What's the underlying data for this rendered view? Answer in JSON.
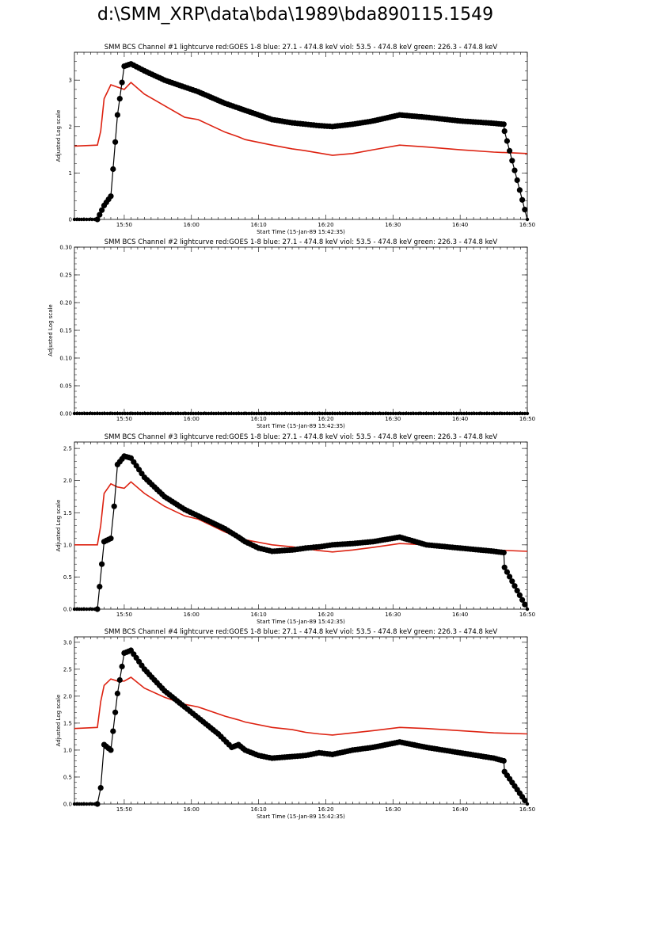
{
  "page_title": "d:\\SMM_XRP\\data\\bda\\1989\\bda890115.1549",
  "colors": {
    "goes": "#dd2211",
    "bcs": "#000000"
  },
  "chart_data": [
    {
      "type": "scatter",
      "title": "SMM BCS Channel #1 lightcurve  red:GOES 1-8  blue: 27.1 - 474.8 keV  viol: 53.5 - 474.8 keV  green: 226.3 - 474.8 keV",
      "xlabel": "Start Time (15-Jan-89 15:42:35)",
      "ylabel": "Adjusted Log scale",
      "xlim": [
        "15:42:35",
        "16:50"
      ],
      "ylim": [
        0,
        3.6
      ],
      "xticks": [
        "15:50",
        "16:00",
        "16:10",
        "16:20",
        "16:30",
        "16:40",
        "16:50"
      ],
      "yticks": [
        "0",
        "1",
        "2",
        "3"
      ],
      "series": [
        {
          "name": "red:GOES 1-8",
          "color": "#dd2211",
          "kind": "line",
          "x": [
            "15:42:35",
            "15:46",
            "15:46.5",
            "15:47",
            "15:48",
            "15:49",
            "15:50",
            "15:51",
            "15:53",
            "15:56",
            "15:59",
            "16:01",
            "16:05",
            "16:07",
            "16:08",
            "16:12",
            "16:15",
            "16:17",
            "16:19",
            "16:21",
            "16:24",
            "16:27",
            "16:31",
            "16:35",
            "16:40",
            "16:45",
            "16:50"
          ],
          "y": [
            1.58,
            1.6,
            1.9,
            2.6,
            2.9,
            2.85,
            2.8,
            2.95,
            2.7,
            2.45,
            2.2,
            2.15,
            1.88,
            1.78,
            1.72,
            1.6,
            1.52,
            1.48,
            1.43,
            1.38,
            1.42,
            1.5,
            1.6,
            1.56,
            1.5,
            1.45,
            1.42
          ]
        },
        {
          "name": "BCS",
          "color": "#000000",
          "kind": "points",
          "x": [
            "15:42:35",
            "15:44",
            "15:46",
            "15:47",
            "15:48",
            "15:49",
            "15:50",
            "15:51",
            "15:53",
            "15:56",
            "15:59",
            "16:01",
            "16:05",
            "16:07",
            "16:08",
            "16:12",
            "16:15",
            "16:17",
            "16:19",
            "16:21",
            "16:24",
            "16:27",
            "16:31",
            "16:35",
            "16:40",
            "16:45",
            "16:46.5",
            "16:46.6",
            "16:50"
          ],
          "y": [
            0,
            0,
            0,
            0.3,
            0.5,
            2.25,
            3.3,
            3.35,
            3.2,
            3.0,
            2.85,
            2.75,
            2.5,
            2.4,
            2.35,
            2.15,
            2.08,
            2.05,
            2.02,
            2.0,
            2.05,
            2.12,
            2.25,
            2.2,
            2.12,
            2.07,
            2.05,
            1.9,
            0
          ]
        }
      ]
    },
    {
      "type": "scatter",
      "title": "SMM BCS Channel #2 lightcurve  red:GOES 1-8  blue: 27.1 - 474.8 keV  viol: 53.5 - 474.8 keV  green: 226.3 - 474.8 keV",
      "xlabel": "Start Time (15-Jan-89 15:42:35)",
      "ylabel": "Adjusted Log scale",
      "xlim": [
        "15:42:35",
        "16:50"
      ],
      "ylim": [
        0,
        0.3
      ],
      "xticks": [
        "15:50",
        "16:00",
        "16:10",
        "16:20",
        "16:30",
        "16:40",
        "16:50"
      ],
      "yticks": [
        "0.00",
        "0.05",
        "0.10",
        "0.15",
        "0.20",
        "0.25",
        "0.30"
      ],
      "series": [
        {
          "name": "BCS",
          "color": "#000000",
          "kind": "points",
          "x": [
            "15:42:35",
            "16:50"
          ],
          "y": [
            0,
            0
          ]
        }
      ]
    },
    {
      "type": "scatter",
      "title": "SMM BCS Channel #3 lightcurve  red:GOES 1-8  blue: 27.1 - 474.8 keV  viol: 53.5 - 474.8 keV  green: 226.3 - 474.8 keV",
      "xlabel": "Start Time (15-Jan-89 15:42:35)",
      "ylabel": "Adjusted Log scale",
      "xlim": [
        "15:42:35",
        "16:50"
      ],
      "ylim": [
        0,
        2.6
      ],
      "xticks": [
        "15:50",
        "16:00",
        "16:10",
        "16:20",
        "16:30",
        "16:40",
        "16:50"
      ],
      "yticks": [
        "0.0",
        "0.5",
        "1.0",
        "1.5",
        "2.0",
        "2.5"
      ],
      "series": [
        {
          "name": "red:GOES 1-8",
          "color": "#dd2211",
          "kind": "line",
          "x": [
            "15:42:35",
            "15:46",
            "15:46.5",
            "15:47",
            "15:48",
            "15:49",
            "15:50",
            "15:51",
            "15:53",
            "15:56",
            "15:59",
            "16:01",
            "16:05",
            "16:07",
            "16:08",
            "16:12",
            "16:15",
            "16:17",
            "16:19",
            "16:21",
            "16:24",
            "16:27",
            "16:31",
            "16:35",
            "16:40",
            "16:45",
            "16:50"
          ],
          "y": [
            1.0,
            1.0,
            1.3,
            1.8,
            1.95,
            1.9,
            1.88,
            1.98,
            1.8,
            1.6,
            1.45,
            1.4,
            1.2,
            1.12,
            1.08,
            1.0,
            0.97,
            0.94,
            0.91,
            0.89,
            0.92,
            0.96,
            1.02,
            1.0,
            0.96,
            0.92,
            0.9
          ]
        },
        {
          "name": "BCS",
          "color": "#000000",
          "kind": "points",
          "x": [
            "15:42:35",
            "15:44",
            "15:46",
            "15:47",
            "15:48",
            "15:48.5",
            "15:49",
            "15:50",
            "15:51",
            "15:53",
            "15:56",
            "15:59",
            "16:01",
            "16:05",
            "16:07",
            "16:08",
            "16:10",
            "16:12",
            "16:15",
            "16:17",
            "16:19",
            "16:21",
            "16:24",
            "16:27",
            "16:31",
            "16:35",
            "16:40",
            "16:45",
            "16:46.5",
            "16:46.6",
            "16:50"
          ],
          "y": [
            0,
            0,
            0,
            1.05,
            1.1,
            1.6,
            2.25,
            2.38,
            2.35,
            2.05,
            1.75,
            1.55,
            1.45,
            1.25,
            1.12,
            1.05,
            0.95,
            0.9,
            0.92,
            0.95,
            0.97,
            1.0,
            1.02,
            1.05,
            1.12,
            1.0,
            0.95,
            0.9,
            0.88,
            0.65,
            0
          ]
        }
      ]
    },
    {
      "type": "scatter",
      "title": "SMM BCS Channel #4 lightcurve  red:GOES 1-8  blue: 27.1 - 474.8 keV  viol: 53.5 - 474.8 keV  green: 226.3 - 474.8 keV",
      "xlabel": "Start Time (15-Jan-89 15:42:35)",
      "ylabel": "Adjusted Log scale",
      "xlim": [
        "15:42:35",
        "16:50"
      ],
      "ylim": [
        0,
        3.1
      ],
      "xticks": [
        "15:50",
        "16:00",
        "16:10",
        "16:20",
        "16:30",
        "16:40",
        "16:50"
      ],
      "yticks": [
        "0.0",
        "0.5",
        "1.0",
        "1.5",
        "2.0",
        "2.5",
        "3.0"
      ],
      "series": [
        {
          "name": "red:GOES 1-8",
          "color": "#dd2211",
          "kind": "line",
          "x": [
            "15:42:35",
            "15:46",
            "15:46.5",
            "15:47",
            "15:48",
            "15:49",
            "15:50",
            "15:51",
            "15:53",
            "15:56",
            "15:59",
            "16:01",
            "16:05",
            "16:07",
            "16:08",
            "16:12",
            "16:15",
            "16:17",
            "16:19",
            "16:21",
            "16:24",
            "16:27",
            "16:31",
            "16:35",
            "16:40",
            "16:45",
            "16:50"
          ],
          "y": [
            1.4,
            1.42,
            1.9,
            2.2,
            2.32,
            2.28,
            2.28,
            2.35,
            2.15,
            1.98,
            1.85,
            1.8,
            1.63,
            1.56,
            1.52,
            1.42,
            1.38,
            1.33,
            1.3,
            1.28,
            1.32,
            1.36,
            1.42,
            1.4,
            1.36,
            1.32,
            1.3
          ]
        },
        {
          "name": "BCS",
          "color": "#000000",
          "kind": "points",
          "x": [
            "15:42:35",
            "15:44",
            "15:46",
            "15:46.5",
            "15:47",
            "15:48",
            "15:49",
            "15:50",
            "15:51",
            "15:53",
            "15:56",
            "15:59",
            "16:01",
            "16:04",
            "16:06",
            "16:07",
            "16:08",
            "16:10",
            "16:12",
            "16:15",
            "16:17",
            "16:19",
            "16:21",
            "16:24",
            "16:27",
            "16:31",
            "16:35",
            "16:40",
            "16:45",
            "16:46.5",
            "16:46.6",
            "16:50"
          ],
          "y": [
            0,
            0,
            0,
            0.3,
            1.1,
            1.0,
            2.05,
            2.8,
            2.85,
            2.5,
            2.1,
            1.8,
            1.6,
            1.3,
            1.05,
            1.1,
            1.0,
            0.9,
            0.85,
            0.88,
            0.9,
            0.95,
            0.92,
            1.0,
            1.05,
            1.15,
            1.05,
            0.95,
            0.85,
            0.8,
            0.6,
            0
          ]
        }
      ]
    }
  ]
}
